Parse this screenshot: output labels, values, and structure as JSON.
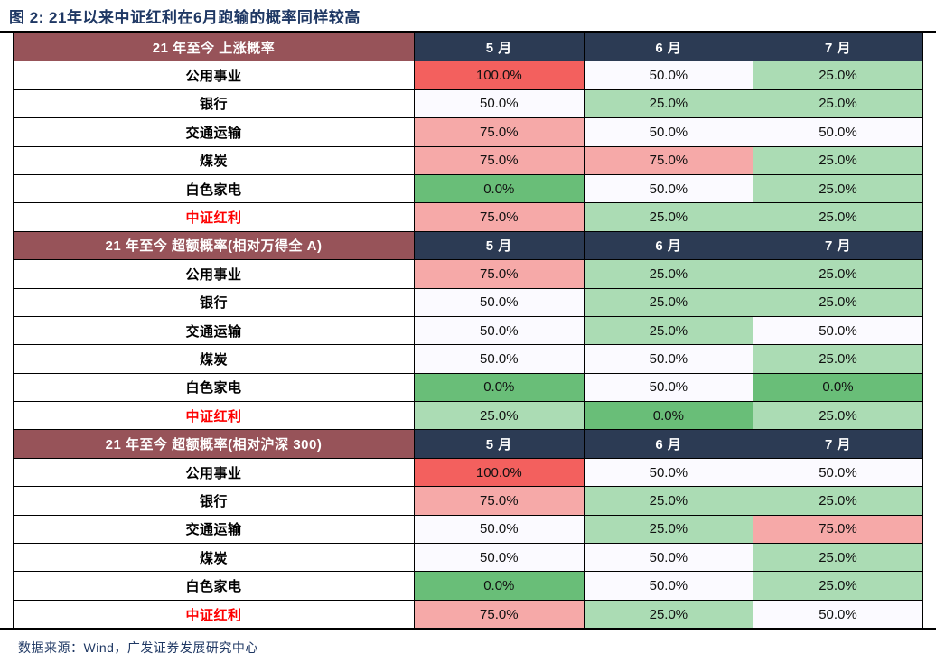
{
  "title": "图 2: 21年以来中证红利在6月跑输的概率同样较高",
  "source": "数据来源：Wind，广发证券发展研究中心",
  "colors": {
    "title_text": "#1f3864",
    "section_header_bg": "#975359",
    "month_header_bg": "#2c3b54",
    "header_text": "#ffffff",
    "highlight_label_text": "#fe0000",
    "border": "#000000",
    "value_100": "#f3605e",
    "value_75": "#f6a9a8",
    "value_50": "#fbfaff",
    "value_25": "#abdcb4",
    "value_0": "#69be78"
  },
  "chart_data": {
    "type": "table",
    "title": "图 2: 21年以来中证红利在6月跑输的概率同样较高",
    "months": [
      "5 月",
      "6 月",
      "7 月"
    ],
    "value_format": "percent_one_decimal",
    "color_scale": {
      "100": "#f3605e",
      "75": "#f6a9a8",
      "50": "#fbfaff",
      "25": "#abdcb4",
      "0": "#69be78"
    },
    "sections": [
      {
        "header": "21 年至今  上涨概率",
        "rows": [
          {
            "label": "公用事业",
            "highlight": false,
            "values": [
              100.0,
              50.0,
              25.0
            ]
          },
          {
            "label": "银行",
            "highlight": false,
            "values": [
              50.0,
              25.0,
              25.0
            ]
          },
          {
            "label": "交通运输",
            "highlight": false,
            "values": [
              75.0,
              50.0,
              50.0
            ]
          },
          {
            "label": "煤炭",
            "highlight": false,
            "values": [
              75.0,
              75.0,
              25.0
            ]
          },
          {
            "label": "白色家电",
            "highlight": false,
            "values": [
              0.0,
              50.0,
              25.0
            ]
          },
          {
            "label": "中证红利",
            "highlight": true,
            "values": [
              75.0,
              25.0,
              25.0
            ]
          }
        ]
      },
      {
        "header": "21 年至今  超额概率(相对万得全 A)",
        "rows": [
          {
            "label": "公用事业",
            "highlight": false,
            "values": [
              75.0,
              25.0,
              25.0
            ]
          },
          {
            "label": "银行",
            "highlight": false,
            "values": [
              50.0,
              25.0,
              25.0
            ]
          },
          {
            "label": "交通运输",
            "highlight": false,
            "values": [
              50.0,
              25.0,
              50.0
            ]
          },
          {
            "label": "煤炭",
            "highlight": false,
            "values": [
              50.0,
              50.0,
              25.0
            ]
          },
          {
            "label": "白色家电",
            "highlight": false,
            "values": [
              0.0,
              50.0,
              0.0
            ]
          },
          {
            "label": "中证红利",
            "highlight": true,
            "values": [
              25.0,
              0.0,
              25.0
            ]
          }
        ]
      },
      {
        "header": "21 年至今  超额概率(相对沪深 300)",
        "rows": [
          {
            "label": "公用事业",
            "highlight": false,
            "values": [
              100.0,
              50.0,
              50.0
            ]
          },
          {
            "label": "银行",
            "highlight": false,
            "values": [
              75.0,
              25.0,
              25.0
            ]
          },
          {
            "label": "交通运输",
            "highlight": false,
            "values": [
              50.0,
              25.0,
              75.0
            ]
          },
          {
            "label": "煤炭",
            "highlight": false,
            "values": [
              50.0,
              50.0,
              25.0
            ]
          },
          {
            "label": "白色家电",
            "highlight": false,
            "values": [
              0.0,
              50.0,
              25.0
            ]
          },
          {
            "label": "中证红利",
            "highlight": true,
            "values": [
              75.0,
              25.0,
              50.0
            ]
          }
        ]
      }
    ]
  }
}
